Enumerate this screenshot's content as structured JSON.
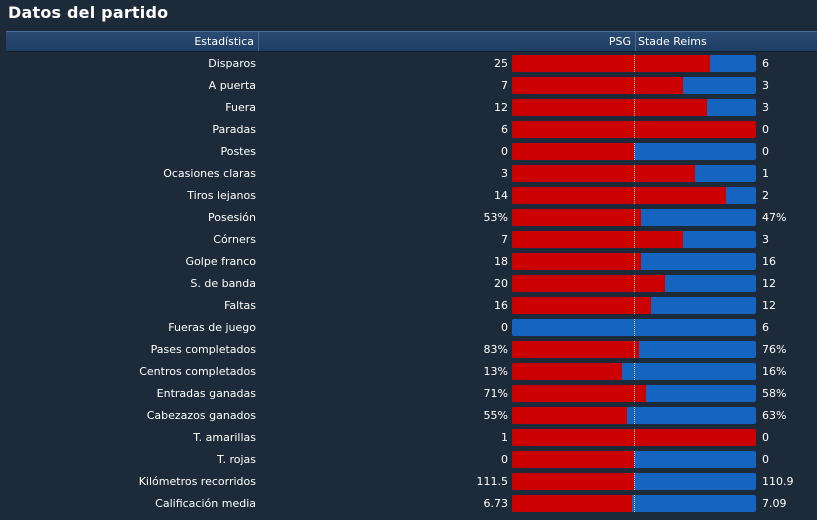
{
  "title": "Datos del partido",
  "header": {
    "stat": "Estadística",
    "home": "PSG",
    "away": "Stade Reims"
  },
  "colors": {
    "home": "#cc0000",
    "away": "#1565c0",
    "background": "#1d2a3a",
    "header": "#23466f"
  },
  "stats": [
    {
      "label": "Disparos",
      "home": "25",
      "away": "6",
      "home_share": 0.81
    },
    {
      "label": "A puerta",
      "home": "7",
      "away": "3",
      "home_share": 0.7
    },
    {
      "label": "Fuera",
      "home": "12",
      "away": "3",
      "home_share": 0.8
    },
    {
      "label": "Paradas",
      "home": "6",
      "away": "0",
      "home_share": 1.0
    },
    {
      "label": "Postes",
      "home": "0",
      "away": "0",
      "home_share": 0.5
    },
    {
      "label": "Ocasiones claras",
      "home": "3",
      "away": "1",
      "home_share": 0.75
    },
    {
      "label": "Tiros lejanos",
      "home": "14",
      "away": "2",
      "home_share": 0.875
    },
    {
      "label": "Posesión",
      "home": "53%",
      "away": "47%",
      "home_share": 0.53
    },
    {
      "label": "Córners",
      "home": "7",
      "away": "3",
      "home_share": 0.7
    },
    {
      "label": "Golpe franco",
      "home": "18",
      "away": "16",
      "home_share": 0.53
    },
    {
      "label": "S. de banda",
      "home": "20",
      "away": "12",
      "home_share": 0.625
    },
    {
      "label": "Faltas",
      "home": "16",
      "away": "12",
      "home_share": 0.57
    },
    {
      "label": "Fueras de juego",
      "home": "0",
      "away": "6",
      "home_share": 0.0
    },
    {
      "label": "Pases completados",
      "home": "83%",
      "away": "76%",
      "home_share": 0.52
    },
    {
      "label": "Centros completados",
      "home": "13%",
      "away": "16%",
      "home_share": 0.45
    },
    {
      "label": "Entradas ganadas",
      "home": "71%",
      "away": "58%",
      "home_share": 0.55
    },
    {
      "label": "Cabezazos ganados",
      "home": "55%",
      "away": "63%",
      "home_share": 0.47
    },
    {
      "label": "T. amarillas",
      "home": "1",
      "away": "0",
      "home_share": 1.0
    },
    {
      "label": "T. rojas",
      "home": "0",
      "away": "0",
      "home_share": 0.5
    },
    {
      "label": "Kilómetros recorridos",
      "home": "111.5",
      "away": "110.9",
      "home_share": 0.5
    },
    {
      "label": "Calificación media",
      "home": "6.73",
      "away": "7.09",
      "home_share": 0.49
    }
  ]
}
